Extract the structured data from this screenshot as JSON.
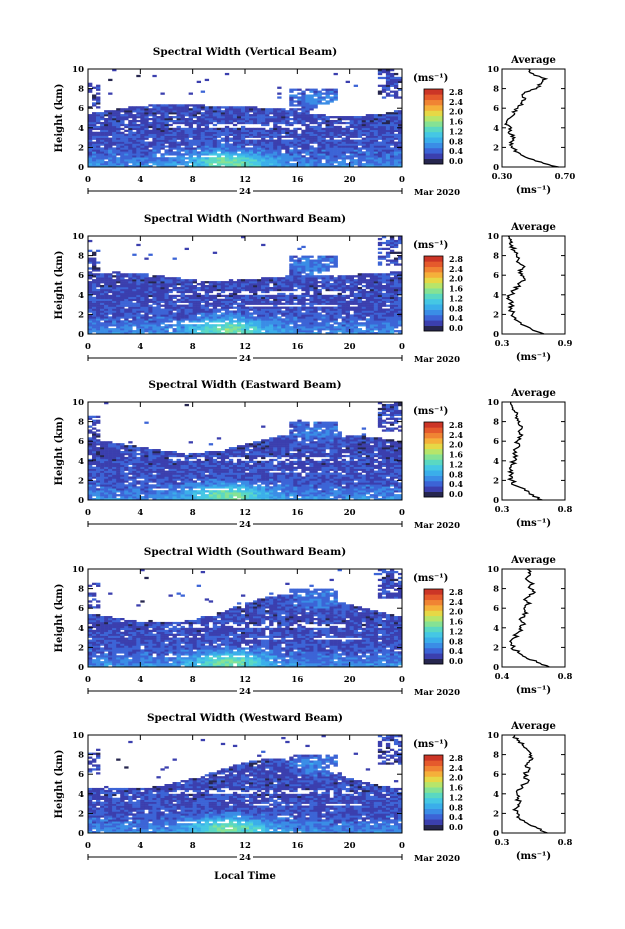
{
  "palette": [
    "#26264e",
    "#3b3fae",
    "#3c64d6",
    "#3a8de6",
    "#3aaeea",
    "#45c7e4",
    "#5ad8c2",
    "#85e294",
    "#b7e56a",
    "#e6d846",
    "#f5b03a",
    "#f08433",
    "#e55a2c",
    "#cc3526"
  ],
  "line_color": "#000000",
  "cbar_labels": [
    "2.8",
    "2.4",
    "2.0",
    "1.6",
    "1.2",
    "0.8",
    "0.4",
    "0.0"
  ],
  "cbar_unit": "(ms⁻¹)",
  "avg_title": "Average",
  "avg_xlabel": "(ms⁻¹)",
  "ylabel": "Height (km)",
  "date_label": "Mar 2020",
  "day_label": "24",
  "xlabel_bottom": "Local Time",
  "x_ticks": [
    "0",
    "4",
    "8",
    "12",
    "16",
    "20",
    "0"
  ],
  "y_ticks": [
    "10",
    "8",
    "6",
    "4",
    "2",
    "0"
  ],
  "chart_data": [
    {
      "type": "heatmap",
      "title": "Spectral Width (Vertical Beam)",
      "x_range": [
        0,
        24
      ],
      "y_range": [
        0,
        10
      ],
      "z_range": [
        0,
        3.0
      ],
      "profile": {
        "type": "line",
        "xlim": [
          0.3,
          0.7
        ],
        "x_tick_labels": [
          "0.30",
          "0.70"
        ],
        "heights": [
          0.0,
          0.5,
          1.0,
          1.5,
          2.0,
          2.5,
          3.0,
          3.5,
          4.0,
          4.5,
          5.0,
          5.5,
          6.0,
          6.5,
          7.0,
          7.5,
          8.0,
          8.5,
          9.0,
          9.5,
          10.0
        ],
        "values": [
          0.66,
          0.55,
          0.45,
          0.4,
          0.36,
          0.35,
          0.38,
          0.34,
          0.36,
          0.33,
          0.35,
          0.38,
          0.4,
          0.42,
          0.45,
          0.44,
          0.52,
          0.55,
          0.58,
          0.5,
          0.47
        ]
      }
    },
    {
      "type": "heatmap",
      "title": "Spectral Width (Northward Beam)",
      "x_range": [
        0,
        24
      ],
      "y_range": [
        0,
        10
      ],
      "z_range": [
        0,
        3.0
      ],
      "profile": {
        "type": "line",
        "xlim": [
          0.3,
          0.9
        ],
        "x_tick_labels": [
          "0.3",
          "0.9"
        ],
        "heights": [
          0.0,
          0.5,
          1.0,
          1.5,
          2.0,
          2.5,
          3.0,
          3.5,
          4.0,
          4.5,
          5.0,
          5.5,
          6.0,
          6.5,
          7.0,
          7.5,
          8.0,
          8.5,
          9.0,
          9.5,
          10.0
        ],
        "values": [
          0.7,
          0.58,
          0.48,
          0.42,
          0.4,
          0.38,
          0.39,
          0.37,
          0.38,
          0.42,
          0.46,
          0.52,
          0.48,
          0.46,
          0.5,
          0.45,
          0.44,
          0.42,
          0.4,
          0.38,
          0.36
        ]
      }
    },
    {
      "type": "heatmap",
      "title": "Spectral Width (Eastward Beam)",
      "x_range": [
        0,
        24
      ],
      "y_range": [
        0,
        10
      ],
      "z_range": [
        0,
        3.0
      ],
      "profile": {
        "type": "line",
        "xlim": [
          0.3,
          0.8
        ],
        "x_tick_labels": [
          "0.3",
          "0.8"
        ],
        "heights": [
          0.0,
          0.5,
          1.0,
          1.5,
          2.0,
          2.5,
          3.0,
          3.5,
          4.0,
          4.5,
          5.0,
          5.5,
          6.0,
          6.5,
          7.0,
          7.5,
          8.0,
          8.5,
          9.0,
          9.5,
          10.0
        ],
        "values": [
          0.62,
          0.55,
          0.48,
          0.4,
          0.38,
          0.36,
          0.38,
          0.37,
          0.4,
          0.42,
          0.4,
          0.44,
          0.42,
          0.45,
          0.43,
          0.46,
          0.44,
          0.42,
          0.4,
          0.38,
          0.37
        ]
      }
    },
    {
      "type": "heatmap",
      "title": "Spectral Width (Southward Beam)",
      "x_range": [
        0,
        24
      ],
      "y_range": [
        0,
        10
      ],
      "z_range": [
        0,
        3.0
      ],
      "profile": {
        "type": "line",
        "xlim": [
          0.4,
          0.8
        ],
        "x_tick_labels": [
          "0.4",
          "0.8"
        ],
        "heights": [
          0.0,
          0.5,
          1.0,
          1.5,
          2.0,
          2.5,
          3.0,
          3.5,
          4.0,
          4.5,
          5.0,
          5.5,
          6.0,
          6.5,
          7.0,
          7.5,
          8.0,
          8.5,
          9.0,
          9.5,
          10.0
        ],
        "values": [
          0.7,
          0.62,
          0.55,
          0.5,
          0.47,
          0.46,
          0.48,
          0.5,
          0.52,
          0.54,
          0.52,
          0.56,
          0.54,
          0.58,
          0.55,
          0.6,
          0.58,
          0.6,
          0.55,
          0.58,
          0.56
        ]
      }
    },
    {
      "type": "heatmap",
      "title": "Spectral Width (Westward Beam)",
      "x_range": [
        0,
        24
      ],
      "y_range": [
        0,
        10
      ],
      "z_range": [
        0,
        3.0
      ],
      "profile": {
        "type": "line",
        "xlim": [
          0.3,
          0.8
        ],
        "x_tick_labels": [
          "0.3",
          "0.8"
        ],
        "heights": [
          0.0,
          0.5,
          1.0,
          1.5,
          2.0,
          2.5,
          3.0,
          3.5,
          4.0,
          4.5,
          5.0,
          5.5,
          6.0,
          6.5,
          7.0,
          7.5,
          8.0,
          8.5,
          9.0,
          9.5,
          10.0
        ],
        "values": [
          0.66,
          0.58,
          0.5,
          0.44,
          0.42,
          0.41,
          0.44,
          0.43,
          0.42,
          0.45,
          0.48,
          0.5,
          0.48,
          0.52,
          0.5,
          0.54,
          0.52,
          0.5,
          0.46,
          0.42,
          0.4
        ]
      }
    }
  ]
}
